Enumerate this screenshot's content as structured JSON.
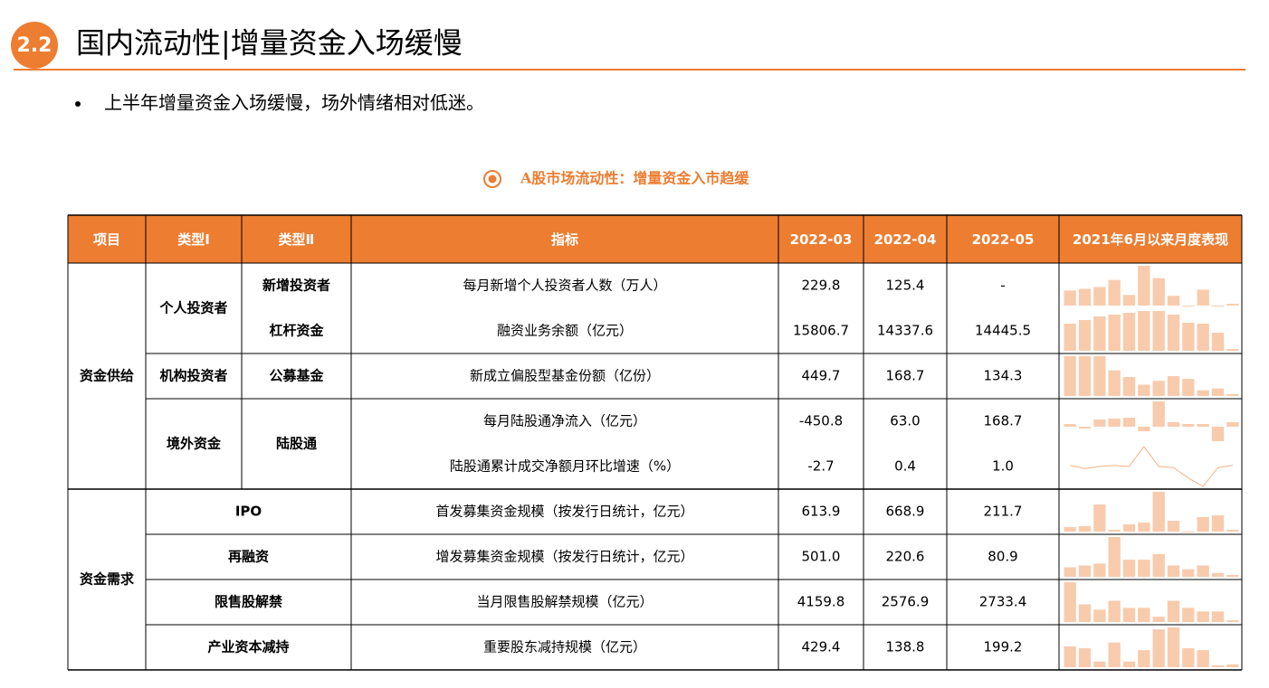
{
  "header": {
    "badge": "2.2",
    "title": "国内流动性|增量资金入场缓慢"
  },
  "bullet": "上半年增量资金入场缓慢，场外情绪相对低迷。",
  "caption": "A股市场流动性：增量资金入市趋缓",
  "table": {
    "columns": [
      "项目",
      "类型Ⅰ",
      "类型Ⅱ",
      "指标",
      "2022-03",
      "2022-04",
      "2022-05",
      "2021年6月以来月度表现"
    ],
    "groups": [
      {
        "name": "资金供给",
        "items": [
          {
            "type1": "个人投资者",
            "subs": [
              {
                "type2": "新增投资者",
                "rows": [
                  {
                    "indicator": "每月新增个人投资者人数（万人）",
                    "values": [
                      "229.8",
                      "125.4",
                      "-"
                    ],
                    "spark_type": "bar",
                    "spark": [
                      17,
                      19,
                      21,
                      29,
                      12,
                      45,
                      31,
                      11,
                      0,
                      18,
                      0,
                      2
                    ]
                  }
                ]
              },
              {
                "type2": "杠杆资金",
                "rows": [
                  {
                    "indicator": "融资业务余额（亿元）",
                    "values": [
                      "15806.7",
                      "14337.6",
                      "14445.5"
                    ],
                    "spark_type": "bar",
                    "spark": [
                      30,
                      34,
                      38,
                      40,
                      42,
                      44,
                      44,
                      40,
                      31,
                      30,
                      20,
                      2
                    ]
                  }
                ]
              }
            ]
          },
          {
            "type1": "机构投资者",
            "subs": [
              {
                "type2": "公募基金",
                "rows": [
                  {
                    "indicator": "新成立偏股型基金份额（亿份）",
                    "values": [
                      "449.7",
                      "168.7",
                      "134.3"
                    ],
                    "spark_type": "bar",
                    "spark": [
                      42,
                      42,
                      42,
                      27,
                      20,
                      12,
                      16,
                      21,
                      18,
                      6,
                      8,
                      2
                    ]
                  }
                ]
              }
            ]
          },
          {
            "type1": "境外资金",
            "subs": [
              {
                "type2": "陆股通",
                "rows": [
                  {
                    "indicator": "每月陆股通净流入（亿元）",
                    "values": [
                      "-450.8",
                      "63.0",
                      "168.7"
                    ],
                    "spark_type": "bar",
                    "spark": [
                      3,
                      -2,
                      8,
                      9,
                      10,
                      -5,
                      28,
                      5,
                      3,
                      3,
                      -16,
                      5
                    ]
                  },
                  {
                    "indicator": "陆股通累计成交净额月环比增速（%）",
                    "values": [
                      "-2.7",
                      "0.4",
                      "1.0"
                    ],
                    "spark_type": "line",
                    "spark": [
                      0,
                      -3,
                      -1,
                      0,
                      -1,
                      18,
                      -1,
                      -2,
                      -12,
                      -20,
                      -2,
                      0
                    ]
                  }
                ]
              }
            ]
          }
        ]
      },
      {
        "name": "资金需求",
        "items": [
          {
            "type": "IPO",
            "rows": [
              {
                "indicator": "首发募集资金规模（按发行日统计，亿元）",
                "values": [
                  "613.9",
                  "668.9",
                  "211.7"
                ],
                "spark_type": "bar",
                "spark": [
                  5,
                  6,
                  30,
                  2,
                  8,
                  10,
                  44,
                  12,
                  0,
                  16,
                  18,
                  2
                ]
              }
            ]
          },
          {
            "type": "再融资",
            "rows": [
              {
                "indicator": "增发募集资金规模（按发行日统计，亿元）",
                "values": [
                  "501.0",
                  "220.6",
                  "80.9"
                ],
                "spark_type": "bar",
                "spark": [
                  10,
                  12,
                  14,
                  42,
                  18,
                  18,
                  24,
                  12,
                  8,
                  12,
                  4,
                  2
                ]
              }
            ]
          },
          {
            "type": "限售股解禁",
            "rows": [
              {
                "indicator": "当月限售股解禁规模（亿元）",
                "values": [
                  "4159.8",
                  "2576.9",
                  "2733.4"
                ],
                "spark_type": "bar",
                "spark": [
                  45,
                  20,
                  14,
                  24,
                  16,
                  16,
                  6,
                  24,
                  16,
                  12,
                  12,
                  2
                ]
              }
            ]
          },
          {
            "type": "产业资本减持",
            "rows": [
              {
                "indicator": "重要股东减持规模（亿元）",
                "values": [
                  "429.4",
                  "138.8",
                  "199.2"
                ],
                "spark_type": "bar",
                "spark": [
                  22,
                  20,
                  6,
                  26,
                  6,
                  18,
                  40,
                  42,
                  20,
                  18,
                  2,
                  3
                ]
              }
            ]
          }
        ]
      }
    ]
  }
}
